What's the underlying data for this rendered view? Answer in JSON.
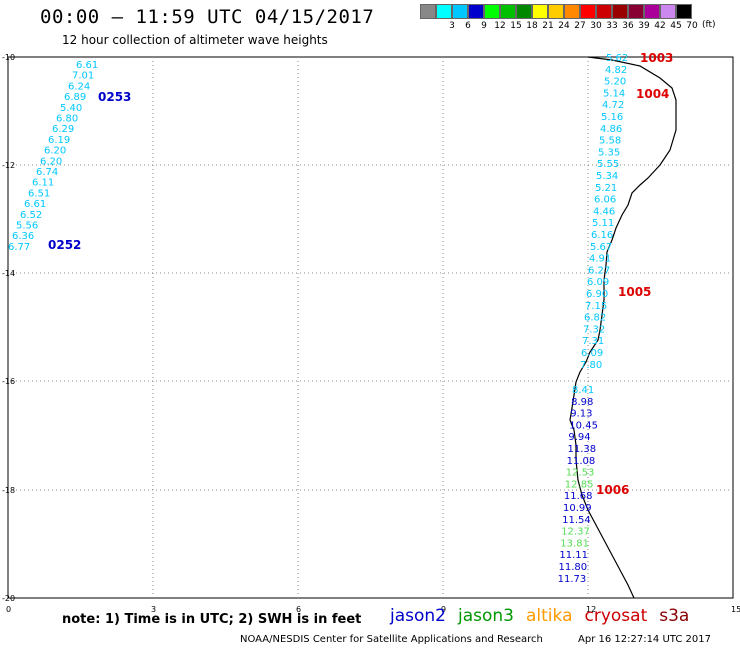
{
  "title": "00:00 — 11:59 UTC 04/15/2017",
  "subtitle": "12 hour collection of altimeter wave heights",
  "legend": {
    "unit": "(ft)",
    "bins": [
      {
        "label": "",
        "color": "#888888"
      },
      {
        "label": "3",
        "color": "#00ffff"
      },
      {
        "label": "6",
        "color": "#00c8ff"
      },
      {
        "label": "9",
        "color": "#0000cd"
      },
      {
        "label": "12",
        "color": "#00ff00"
      },
      {
        "label": "15",
        "color": "#00c000"
      },
      {
        "label": "18",
        "color": "#008800"
      },
      {
        "label": "21",
        "color": "#ffff00"
      },
      {
        "label": "24",
        "color": "#ffcc00"
      },
      {
        "label": "27",
        "color": "#ff8800"
      },
      {
        "label": "30",
        "color": "#ff0000"
      },
      {
        "label": "33",
        "color": "#cc0000"
      },
      {
        "label": "36",
        "color": "#990000"
      },
      {
        "label": "39",
        "color": "#880033"
      },
      {
        "label": "42",
        "color": "#aa0099"
      },
      {
        "label": "45",
        "color": "#cc88ee"
      },
      {
        "label": "70",
        "color": "#000000"
      }
    ]
  },
  "axes": {
    "x_ticks": [
      "0",
      "3",
      "6",
      "9",
      "12",
      "15"
    ],
    "y_ticks": [
      "-10",
      "-12",
      "-14",
      "-16",
      "-18",
      "-20"
    ]
  },
  "tracks": {
    "left_track": {
      "values": [
        "6.61",
        "7.01",
        "6.24",
        "6.89",
        "5.40",
        "6.80",
        "6.29",
        "6.19",
        "6.20",
        "6.20",
        "6.74",
        "6.11",
        "6.51",
        "6.61",
        "6.52",
        "5.56",
        "6.36",
        "6.77"
      ],
      "color": "#00c8ff"
    },
    "right_track_cyan": {
      "values": [
        "5.62",
        "4.82",
        "5.20",
        "5.14",
        "4.72",
        "5.16",
        "4.86",
        "5.58",
        "5.35",
        "5.55",
        "5.34",
        "5.21",
        "6.06",
        "4.46",
        "5.11",
        "6.16",
        "5.67",
        "4.91",
        "6.27",
        "6.09",
        "6.90",
        "7.15",
        "6.82",
        "7.32",
        "7.31",
        "6.09",
        "7.80"
      ],
      "color": "#00c8ff"
    },
    "right_track_lower": {
      "values": [
        "8.41",
        "8.98",
        "9.13",
        "10.45",
        "9.94",
        "11.38",
        "11.08",
        "12.53",
        "12.85",
        "11.68",
        "10.99",
        "11.54",
        "12.37",
        "13.81",
        "11.11",
        "11.80",
        "11.73"
      ]
    },
    "time_labels": [
      {
        "text": "0253",
        "color": "#0000cd"
      },
      {
        "text": "0252",
        "color": "#0000cd"
      },
      {
        "text": "1003",
        "color": "#dd0000"
      },
      {
        "text": "1004",
        "color": "#dd0000"
      },
      {
        "text": "1005",
        "color": "#dd0000"
      },
      {
        "text": "1006",
        "color": "#dd0000"
      }
    ]
  },
  "note": "note:  1) Time is in UTC;  2) SWH is in feet",
  "satellites": [
    {
      "name": "jason2",
      "color": "#0000cc"
    },
    {
      "name": "jason3",
      "color": "#009900"
    },
    {
      "name": "altika",
      "color": "#ff9900"
    },
    {
      "name": "cryosat",
      "color": "#cc0000"
    },
    {
      "name": "s3a",
      "color": "#880000"
    }
  ],
  "footer": "NOAA/NESDIS Center for Satellite Applications and Research",
  "footer_time": "Apr 16 12:27:14 UTC 2017"
}
